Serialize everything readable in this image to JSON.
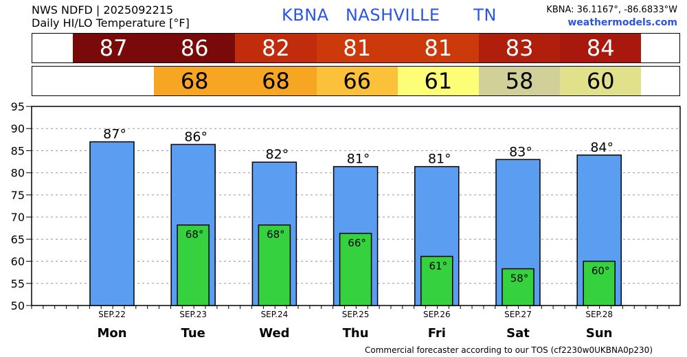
{
  "header": {
    "line1": "NWS NDFD | 2025092215",
    "line2": "Daily HI/LO Temperature [°F]",
    "station": "KBNA   NASHVILLE      TN",
    "coords": "KBNA: 36.1167°, -86.6833°W",
    "site": "weathermodels.com"
  },
  "hi_strip": [
    {
      "label": "87",
      "color": "#7a0a0a"
    },
    {
      "label": "86",
      "color": "#7a0a0a"
    },
    {
      "label": "82",
      "color": "#c02c0c"
    },
    {
      "label": "81",
      "color": "#cc3a0c"
    },
    {
      "label": "81",
      "color": "#cc3a0c"
    },
    {
      "label": "83",
      "color": "#b01e0c"
    },
    {
      "label": "84",
      "color": "#a8180c"
    }
  ],
  "lo_strip": [
    {
      "label": "",
      "color": "#ffffff"
    },
    {
      "label": "68",
      "color": "#f6a623"
    },
    {
      "label": "68",
      "color": "#f6a623"
    },
    {
      "label": "66",
      "color": "#fbc13b"
    },
    {
      "label": "61",
      "color": "#fdfd78"
    },
    {
      "label": "58",
      "color": "#d0d098"
    },
    {
      "label": "60",
      "color": "#e1e18b"
    }
  ],
  "colors": {
    "hi_bar": "#5b9ef1",
    "lo_bar": "#36d13e",
    "grid": "#999999"
  },
  "footer": "Commercial forecaster according to our TOS (cf2230w0UKBNA0p230)",
  "chart_data": {
    "type": "bar",
    "categories": [
      "SEP.22",
      "SEP.23",
      "SEP.24",
      "SEP.25",
      "SEP.26",
      "SEP.27",
      "SEP.28"
    ],
    "days": [
      "Mon",
      "Tue",
      "Wed",
      "Thu",
      "Fri",
      "Sat",
      "Sun"
    ],
    "series": [
      {
        "values": [
          87,
          86.4,
          82.4,
          81.4,
          81.4,
          83,
          84
        ],
        "labels": [
          "87°",
          "86°",
          "82°",
          "81°",
          "81°",
          "83°",
          "84°"
        ]
      },
      {
        "values": [
          null,
          68.2,
          68.2,
          66.3,
          61.1,
          58.3,
          60
        ],
        "labels": [
          "",
          "68°",
          "68°",
          "66°",
          "61°",
          "58°",
          "60°"
        ]
      }
    ],
    "ylim": [
      50,
      95
    ],
    "yticks": [
      "50",
      "55",
      "60",
      "65",
      "70",
      "75",
      "80",
      "85",
      "90",
      "95"
    ],
    "grid": true
  }
}
